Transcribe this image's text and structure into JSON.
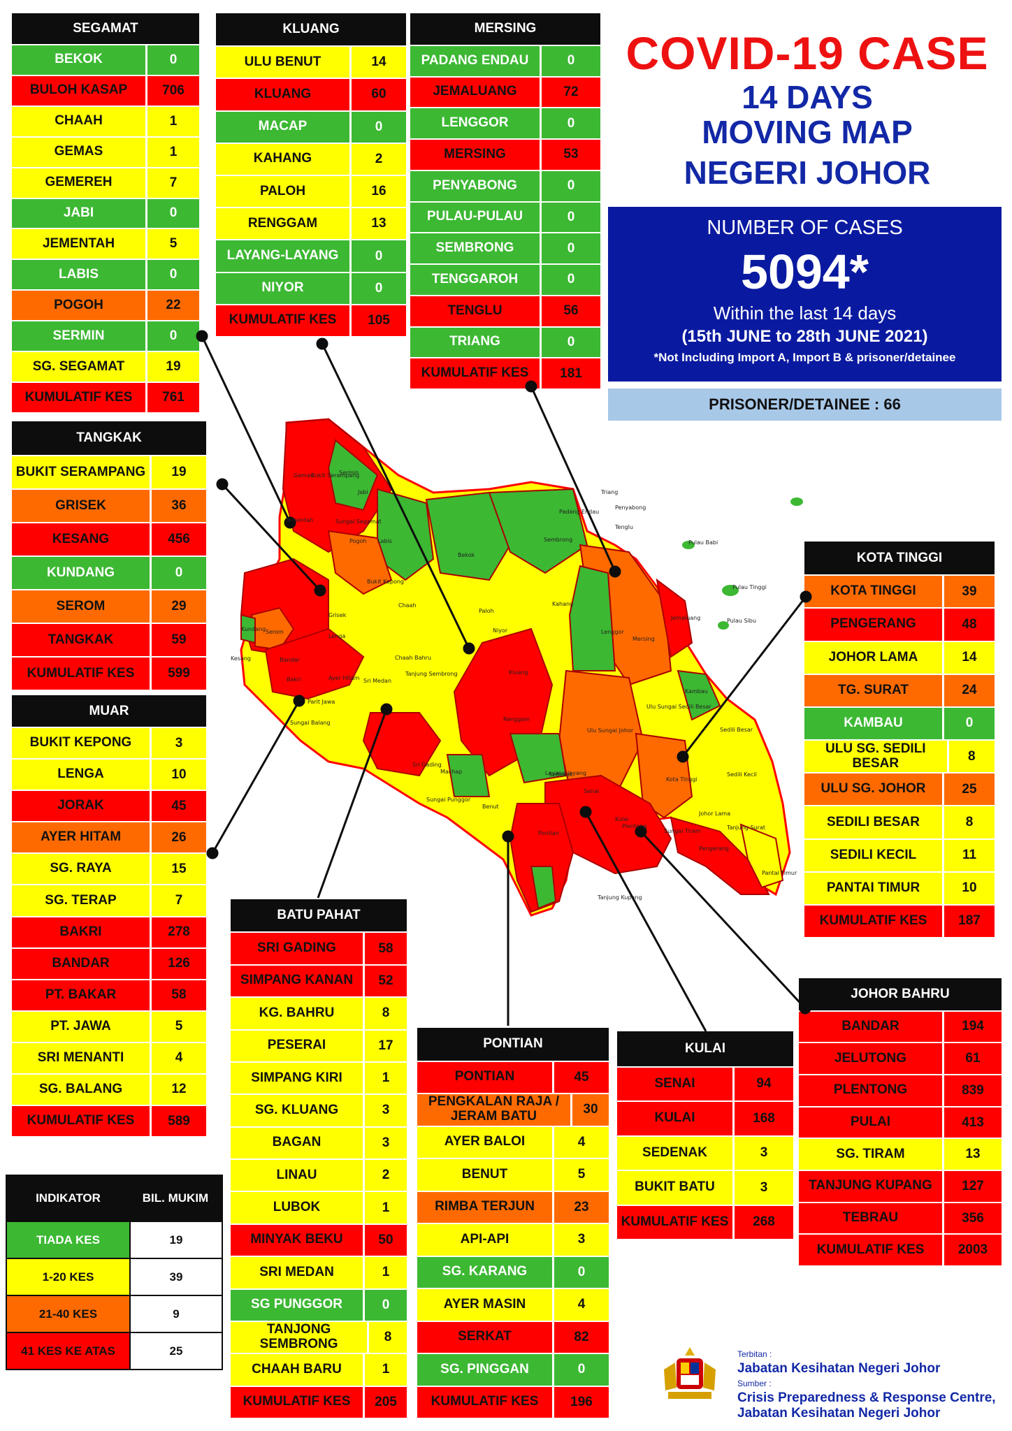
{
  "header": {
    "title": "COVID-19 CASE",
    "line2": "14 DAYS",
    "line3": "MOVING MAP",
    "line4": "NEGERI JOHOR"
  },
  "summary": {
    "label": "NUMBER OF CASES",
    "total": "5094*",
    "within": "Within the last 14 days",
    "period": "(15th JUNE to 28th JUNE 2021)",
    "note": "*Not Including Import A, Import B & prisoner/detainee",
    "prisoner": "PRISONER/DETAINEE : 66"
  },
  "colors": {
    "green": "#3cb833",
    "yellow": "#ffff00",
    "orange": "#ff6a00",
    "red": "#ff0000",
    "navy": "#0a1aa0",
    "title_red": "#ee1111",
    "title_blue": "#1228a6"
  },
  "districts": {
    "segamat": {
      "name": "SEGAMAT",
      "rows": [
        {
          "n": "BEKOK",
          "v": "0",
          "c": "g"
        },
        {
          "n": "BULOH KASAP",
          "v": "706",
          "c": "r"
        },
        {
          "n": "CHAAH",
          "v": "1",
          "c": "y"
        },
        {
          "n": "GEMAS",
          "v": "1",
          "c": "y"
        },
        {
          "n": "GEMEREH",
          "v": "7",
          "c": "y"
        },
        {
          "n": "JABI",
          "v": "0",
          "c": "g"
        },
        {
          "n": "JEMENTAH",
          "v": "5",
          "c": "y"
        },
        {
          "n": "LABIS",
          "v": "0",
          "c": "g"
        },
        {
          "n": "POGOH",
          "v": "22",
          "c": "o"
        },
        {
          "n": "SERMIN",
          "v": "0",
          "c": "g"
        },
        {
          "n": "SG. SEGAMAT",
          "v": "19",
          "c": "y"
        },
        {
          "n": "KUMULATIF KES",
          "v": "761",
          "c": "r"
        }
      ]
    },
    "kluang": {
      "name": "KLUANG",
      "rows": [
        {
          "n": "ULU BENUT",
          "v": "14",
          "c": "y"
        },
        {
          "n": "KLUANG",
          "v": "60",
          "c": "r"
        },
        {
          "n": "MACAP",
          "v": "0",
          "c": "g"
        },
        {
          "n": "KAHANG",
          "v": "2",
          "c": "y"
        },
        {
          "n": "PALOH",
          "v": "16",
          "c": "y"
        },
        {
          "n": "RENGGAM",
          "v": "13",
          "c": "y"
        },
        {
          "n": "LAYANG-LAYANG",
          "v": "0",
          "c": "g"
        },
        {
          "n": "NIYOR",
          "v": "0",
          "c": "g"
        },
        {
          "n": "KUMULATIF KES",
          "v": "105",
          "c": "r"
        }
      ]
    },
    "mersing": {
      "name": "MERSING",
      "rows": [
        {
          "n": "PADANG ENDAU",
          "v": "0",
          "c": "g"
        },
        {
          "n": "JEMALUANG",
          "v": "72",
          "c": "r"
        },
        {
          "n": "LENGGOR",
          "v": "0",
          "c": "g"
        },
        {
          "n": "MERSING",
          "v": "53",
          "c": "r"
        },
        {
          "n": "PENYABONG",
          "v": "0",
          "c": "g"
        },
        {
          "n": "PULAU-PULAU",
          "v": "0",
          "c": "g"
        },
        {
          "n": "SEMBRONG",
          "v": "0",
          "c": "g"
        },
        {
          "n": "TENGGAROH",
          "v": "0",
          "c": "g"
        },
        {
          "n": "TENGLU",
          "v": "56",
          "c": "r"
        },
        {
          "n": "TRIANG",
          "v": "0",
          "c": "g"
        },
        {
          "n": "KUMULATIF KES",
          "v": "181",
          "c": "r"
        }
      ]
    },
    "tangkak": {
      "name": "TANGKAK",
      "rows": [
        {
          "n": "BUKIT SERAMPANG",
          "v": "19",
          "c": "y"
        },
        {
          "n": "GRISEK",
          "v": "36",
          "c": "o"
        },
        {
          "n": "KESANG",
          "v": "456",
          "c": "r"
        },
        {
          "n": "KUNDANG",
          "v": "0",
          "c": "g"
        },
        {
          "n": "SEROM",
          "v": "29",
          "c": "o"
        },
        {
          "n": "TANGKAK",
          "v": "59",
          "c": "r"
        },
        {
          "n": "KUMULATIF KES",
          "v": "599",
          "c": "r"
        }
      ]
    },
    "muar": {
      "name": "MUAR",
      "rows": [
        {
          "n": "BUKIT KEPONG",
          "v": "3",
          "c": "y"
        },
        {
          "n": "LENGA",
          "v": "10",
          "c": "y"
        },
        {
          "n": "JORAK",
          "v": "45",
          "c": "r"
        },
        {
          "n": "AYER HITAM",
          "v": "26",
          "c": "o"
        },
        {
          "n": "SG. RAYA",
          "v": "15",
          "c": "y"
        },
        {
          "n": "SG. TERAP",
          "v": "7",
          "c": "y"
        },
        {
          "n": "BAKRI",
          "v": "278",
          "c": "r"
        },
        {
          "n": "BANDAR",
          "v": "126",
          "c": "r"
        },
        {
          "n": "PT. BAKAR",
          "v": "58",
          "c": "r"
        },
        {
          "n": "PT. JAWA",
          "v": "5",
          "c": "y"
        },
        {
          "n": "SRI MENANTI",
          "v": "4",
          "c": "y"
        },
        {
          "n": "SG. BALANG",
          "v": "12",
          "c": "y"
        },
        {
          "n": "KUMULATIF KES",
          "v": "589",
          "c": "r"
        }
      ]
    },
    "batupahat": {
      "name": "BATU PAHAT",
      "rows": [
        {
          "n": "SRI GADING",
          "v": "58",
          "c": "r"
        },
        {
          "n": "SIMPANG KANAN",
          "v": "52",
          "c": "r"
        },
        {
          "n": "KG. BAHRU",
          "v": "8",
          "c": "y"
        },
        {
          "n": "PESERAI",
          "v": "17",
          "c": "y"
        },
        {
          "n": "SIMPANG KIRI",
          "v": "1",
          "c": "y"
        },
        {
          "n": "SG. KLUANG",
          "v": "3",
          "c": "y"
        },
        {
          "n": "BAGAN",
          "v": "3",
          "c": "y"
        },
        {
          "n": "LINAU",
          "v": "2",
          "c": "y"
        },
        {
          "n": "LUBOK",
          "v": "1",
          "c": "y"
        },
        {
          "n": "MINYAK BEKU",
          "v": "50",
          "c": "r"
        },
        {
          "n": "SRI MEDAN",
          "v": "1",
          "c": "y"
        },
        {
          "n": "SG PUNGGOR",
          "v": "0",
          "c": "g"
        },
        {
          "n": "TANJONG SEMBRONG",
          "v": "8",
          "c": "y"
        },
        {
          "n": "CHAAH BARU",
          "v": "1",
          "c": "y"
        },
        {
          "n": "KUMULATIF KES",
          "v": "205",
          "c": "r"
        }
      ]
    },
    "pontian": {
      "name": "PONTIAN",
      "rows": [
        {
          "n": "PONTIAN",
          "v": "45",
          "c": "r"
        },
        {
          "n": "PENGKALAN RAJA / JERAM BATU",
          "v": "30",
          "c": "o"
        },
        {
          "n": "AYER BALOI",
          "v": "4",
          "c": "y"
        },
        {
          "n": "BENUT",
          "v": "5",
          "c": "y"
        },
        {
          "n": "RIMBA TERJUN",
          "v": "23",
          "c": "o"
        },
        {
          "n": "API-API",
          "v": "3",
          "c": "y"
        },
        {
          "n": "SG. KARANG",
          "v": "0",
          "c": "g"
        },
        {
          "n": "AYER MASIN",
          "v": "4",
          "c": "y"
        },
        {
          "n": "SERKAT",
          "v": "82",
          "c": "r"
        },
        {
          "n": "SG. PINGGAN",
          "v": "0",
          "c": "g"
        },
        {
          "n": "KUMULATIF KES",
          "v": "196",
          "c": "r"
        }
      ]
    },
    "kulai": {
      "name": "KULAI",
      "rows": [
        {
          "n": "SENAI",
          "v": "94",
          "c": "r"
        },
        {
          "n": "KULAI",
          "v": "168",
          "c": "r"
        },
        {
          "n": "SEDENAK",
          "v": "3",
          "c": "y"
        },
        {
          "n": "BUKIT BATU",
          "v": "3",
          "c": "y"
        },
        {
          "n": "KUMULATIF KES",
          "v": "268",
          "c": "r"
        }
      ]
    },
    "kotatinggi": {
      "name": "KOTA TINGGI",
      "rows": [
        {
          "n": "KOTA TINGGI",
          "v": "39",
          "c": "o"
        },
        {
          "n": "PENGERANG",
          "v": "48",
          "c": "r"
        },
        {
          "n": "JOHOR LAMA",
          "v": "14",
          "c": "y"
        },
        {
          "n": "TG. SURAT",
          "v": "24",
          "c": "o"
        },
        {
          "n": "KAMBAU",
          "v": "0",
          "c": "g"
        },
        {
          "n": "ULU SG. SEDILI BESAR",
          "v": "8",
          "c": "y"
        },
        {
          "n": "ULU  SG. JOHOR",
          "v": "25",
          "c": "o"
        },
        {
          "n": "SEDILI BESAR",
          "v": "8",
          "c": "y"
        },
        {
          "n": "SEDILI KECIL",
          "v": "11",
          "c": "y"
        },
        {
          "n": "PANTAI TIMUR",
          "v": "10",
          "c": "y"
        },
        {
          "n": "KUMULATIF KES",
          "v": "187",
          "c": "r"
        }
      ]
    },
    "johorbahru": {
      "name": "JOHOR BAHRU",
      "rows": [
        {
          "n": "BANDAR",
          "v": "194",
          "c": "r"
        },
        {
          "n": "JELUTONG",
          "v": "61",
          "c": "r"
        },
        {
          "n": "PLENTONG",
          "v": "839",
          "c": "r"
        },
        {
          "n": "PULAI",
          "v": "413",
          "c": "r"
        },
        {
          "n": "SG. TIRAM",
          "v": "13",
          "c": "y"
        },
        {
          "n": "TANJUNG KUPANG",
          "v": "127",
          "c": "r"
        },
        {
          "n": "TEBRAU",
          "v": "356",
          "c": "r"
        },
        {
          "n": "KUMULATIF KES",
          "v": "2003",
          "c": "r"
        }
      ]
    }
  },
  "legend": {
    "h1": "INDIKATOR",
    "h2": "BIL. MUKIM",
    "rows": [
      {
        "label": "TIADA KES",
        "count": "19",
        "c": "g"
      },
      {
        "label": "1-20 KES",
        "count": "39",
        "c": "y"
      },
      {
        "label": "21-40 KES",
        "count": "9",
        "c": "o"
      },
      {
        "label": "41 KES KE ATAS",
        "count": "25",
        "c": "r"
      }
    ]
  },
  "credits": {
    "terbitan_label": "Terbitan :",
    "terbitan": "Jabatan Kesihatan Negeri Johor",
    "sumber_label": "Sumber :",
    "sumber1": "Crisis Preparedness & Response Centre,",
    "sumber2": "Jabatan Kesihatan Negeri Johor"
  },
  "map": {
    "labels": [
      "Gemas",
      "Bukit Serampang",
      "Jementah",
      "Sermin",
      "Jabi",
      "Sungai Segamat",
      "Labis",
      "Pogoh",
      "Bekok",
      "Sembrong",
      "Padang Endau",
      "Triang",
      "Penyabong",
      "Tenglu",
      "Pulau Babi",
      "Pulau Tinggi",
      "Pulau Sibu",
      "Bukit Kepong",
      "Chaah",
      "Paloh",
      "Kahang",
      "Lenggor",
      "Mersing",
      "Niyor",
      "Grisek",
      "Lenga",
      "Serom",
      "Kundang",
      "Kesang",
      "Chaah Bahru",
      "Tanjung Sembrong",
      "Ayer Hitam",
      "Sri Medan",
      "Kluang",
      "Renggam",
      "Jemaluang",
      "Ulu Sungai Sedili Besar",
      "Kambau",
      "Sedili Besar",
      "Ulu Sungai Johor",
      "Machap",
      "Layang-layang",
      "Sri Gading",
      "Sedenak",
      "Kota Tinggi",
      "Sedili Kecil",
      "Senai",
      "Kulai",
      "Johor Lama",
      "Tanjung Surat",
      "Pontian",
      "Plentong",
      "Sungai Tiram",
      "Pengerang",
      "Pantai Timur",
      "Tanjung Kupang",
      "Benut",
      "Sungai Punggor",
      "Bakri",
      "Parit Jawa",
      "Sungai Balang",
      "Bandar"
    ]
  }
}
